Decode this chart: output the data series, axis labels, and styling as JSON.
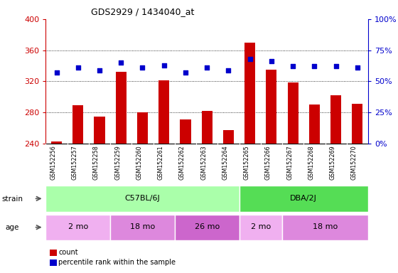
{
  "title": "GDS2929 / 1434040_at",
  "samples": [
    "GSM152256",
    "GSM152257",
    "GSM152258",
    "GSM152259",
    "GSM152260",
    "GSM152261",
    "GSM152262",
    "GSM152263",
    "GSM152264",
    "GSM152265",
    "GSM152266",
    "GSM152267",
    "GSM152268",
    "GSM152269",
    "GSM152270"
  ],
  "counts": [
    242,
    289,
    274,
    332,
    280,
    321,
    271,
    282,
    257,
    370,
    335,
    318,
    290,
    302,
    291
  ],
  "percentile_ranks": [
    57,
    61,
    59,
    65,
    61,
    63,
    57,
    61,
    59,
    68,
    66,
    62,
    62,
    62,
    61
  ],
  "ylim_left": [
    240,
    400
  ],
  "ylim_right": [
    0,
    100
  ],
  "yticks_left": [
    240,
    280,
    320,
    360,
    400
  ],
  "yticks_right": [
    0,
    25,
    50,
    75,
    100
  ],
  "bar_color": "#cc0000",
  "dot_color": "#0000cc",
  "strain_groups": [
    {
      "label": "C57BL/6J",
      "start": 0,
      "end": 9,
      "color": "#aaffaa"
    },
    {
      "label": "DBA/2J",
      "start": 9,
      "end": 15,
      "color": "#55dd55"
    }
  ],
  "age_groups": [
    {
      "label": "2 mo",
      "start": 0,
      "end": 3,
      "color": "#f0b0f0"
    },
    {
      "label": "18 mo",
      "start": 3,
      "end": 6,
      "color": "#dd88dd"
    },
    {
      "label": "26 mo",
      "start": 6,
      "end": 9,
      "color": "#cc66cc"
    },
    {
      "label": "2 mo",
      "start": 9,
      "end": 11,
      "color": "#f0b0f0"
    },
    {
      "label": "18 mo",
      "start": 11,
      "end": 15,
      "color": "#dd88dd"
    }
  ],
  "legend_items": [
    {
      "label": "count",
      "color": "#cc0000"
    },
    {
      "label": "percentile rank within the sample",
      "color": "#0000cc"
    }
  ],
  "grid_color": "#000000",
  "bg_color": "#ffffff",
  "tick_area_bg": "#cccccc",
  "left_axis_color": "#cc0000",
  "right_axis_color": "#0000cc",
  "axis_line_color": "#000000"
}
